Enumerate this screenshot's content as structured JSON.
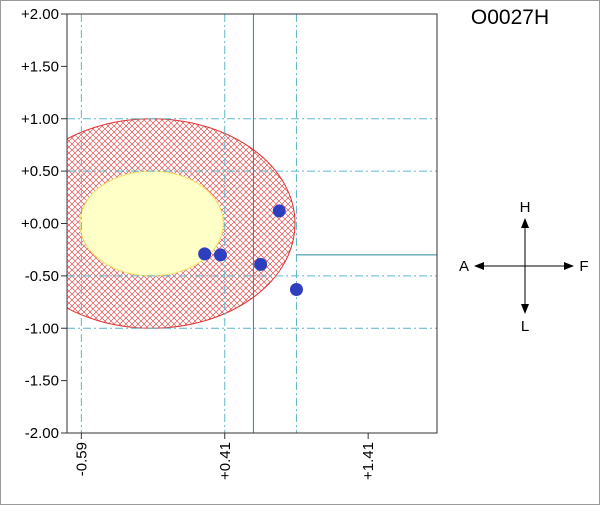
{
  "chart_data": {
    "type": "scatter",
    "title": "O0027H",
    "xlim": [
      -0.69,
      1.89
    ],
    "ylim": [
      -2.0,
      2.0
    ],
    "xticks": [
      {
        "value": -0.59,
        "label": "-0.59"
      },
      {
        "value": 0.41,
        "label": "+0.41"
      },
      {
        "value": 1.41,
        "label": "+1.41"
      }
    ],
    "yticks": [
      {
        "value": 2.0,
        "label": "+2.00"
      },
      {
        "value": 1.5,
        "label": "+1.50"
      },
      {
        "value": 1.0,
        "label": "+1.00"
      },
      {
        "value": 0.5,
        "label": "+0.50"
      },
      {
        "value": 0.0,
        "label": "+0.00"
      },
      {
        "value": -0.5,
        "label": "-0.50"
      },
      {
        "value": -1.0,
        "label": "-1.00"
      },
      {
        "value": -1.5,
        "label": "-1.50"
      },
      {
        "value": -2.0,
        "label": "-2.00"
      }
    ],
    "grid": {
      "dashdot_x": [
        -0.59,
        0.41,
        0.91
      ],
      "dashdot_y": [
        1.0,
        0.5,
        -0.5,
        -1.0
      ],
      "solid_x": [
        0.61
      ]
    },
    "ref_line": {
      "y": -0.3,
      "x_from": 0.91,
      "x_to": 1.89
    },
    "regions": [
      {
        "name": "red-hatched-ellipse",
        "cx": -0.1,
        "cy": 0.0,
        "rx": 1.0,
        "ry": 1.0,
        "color": "#e03030",
        "fill": "crosshatch"
      },
      {
        "name": "yellow-ellipse",
        "cx": -0.1,
        "cy": 0.0,
        "rx": 0.5,
        "ry": 0.5,
        "color": "#f0e060",
        "fill": "#ffffc8"
      }
    ],
    "points": [
      {
        "x": 0.79,
        "y": 0.12
      },
      {
        "x": 0.27,
        "y": -0.29
      },
      {
        "x": 0.38,
        "y": -0.3
      },
      {
        "x": 0.66,
        "y": -0.39
      },
      {
        "x": 0.91,
        "y": -0.63
      }
    ],
    "point_color": "#2d3fbf"
  },
  "compass": {
    "up": "H",
    "down": "L",
    "left": "A",
    "right": "F"
  }
}
